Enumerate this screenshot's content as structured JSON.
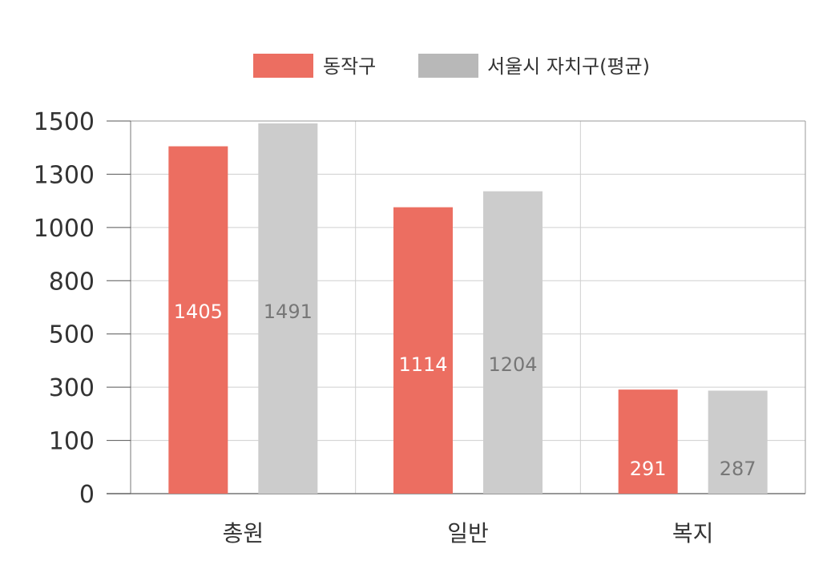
{
  "chart_data": {
    "type": "bar",
    "categories": [
      "총원",
      "일반",
      "복지"
    ],
    "series": [
      {
        "name": "동작구",
        "values": [
          1405,
          1114,
          291
        ],
        "color": "#ec6e61",
        "label_color": "#ffffff"
      },
      {
        "name": "서울시 자치구(평균)",
        "values": [
          1491,
          1204,
          287
        ],
        "color": "#cccccc",
        "label_color": "#777777"
      }
    ],
    "yticks": [
      "0",
      "100",
      "300",
      "500",
      "800",
      "1000",
      "1300",
      "1500"
    ],
    "grid": true,
    "legend_position": "top-center",
    "legend_swatch_colors": [
      "#ec6e61",
      "#b8b8b8"
    ]
  }
}
